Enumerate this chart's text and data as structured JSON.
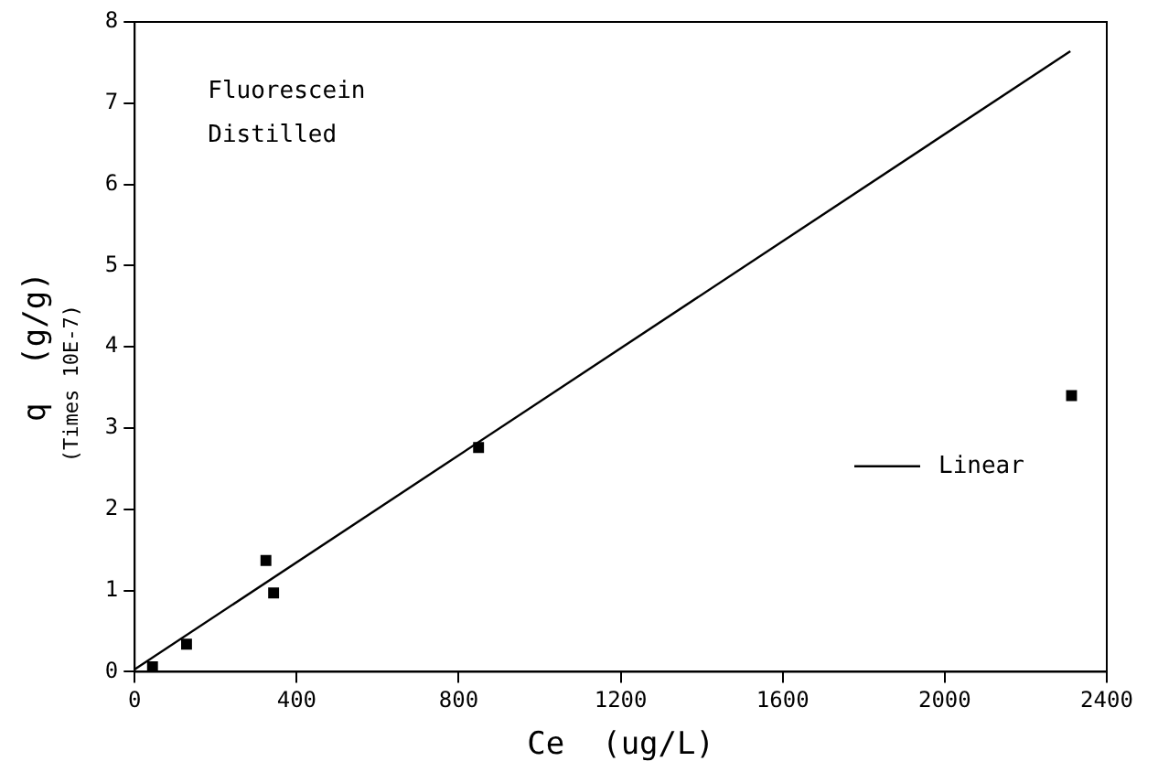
{
  "chart_data": {
    "type": "scatter",
    "xlabel": "Ce  (ug/L)",
    "ylabel": "q  (g/g)",
    "y2label": "(Times 10E-7)",
    "annotations": [
      "Fluorescein",
      "Distilled"
    ],
    "xlim": [
      0,
      2400
    ],
    "xticks": [
      0,
      400,
      800,
      1200,
      1600,
      2000,
      2400
    ],
    "ylim": [
      0,
      8
    ],
    "yticks": [
      0,
      1,
      2,
      3,
      4,
      5,
      6,
      7,
      8
    ],
    "grid": false,
    "legend": "right",
    "series": [
      {
        "marker": "square",
        "color": "#000000",
        "x": [
          44,
          128,
          324,
          343,
          849,
          2313
        ],
        "values": [
          0.06,
          0.34,
          1.37,
          0.97,
          2.76,
          3.4
        ]
      },
      {
        "type": "line",
        "marker": "none",
        "name": "Linear",
        "color": "#000000",
        "x": [
          0,
          2310
        ],
        "values": [
          0.03,
          7.64
        ]
      }
    ]
  }
}
